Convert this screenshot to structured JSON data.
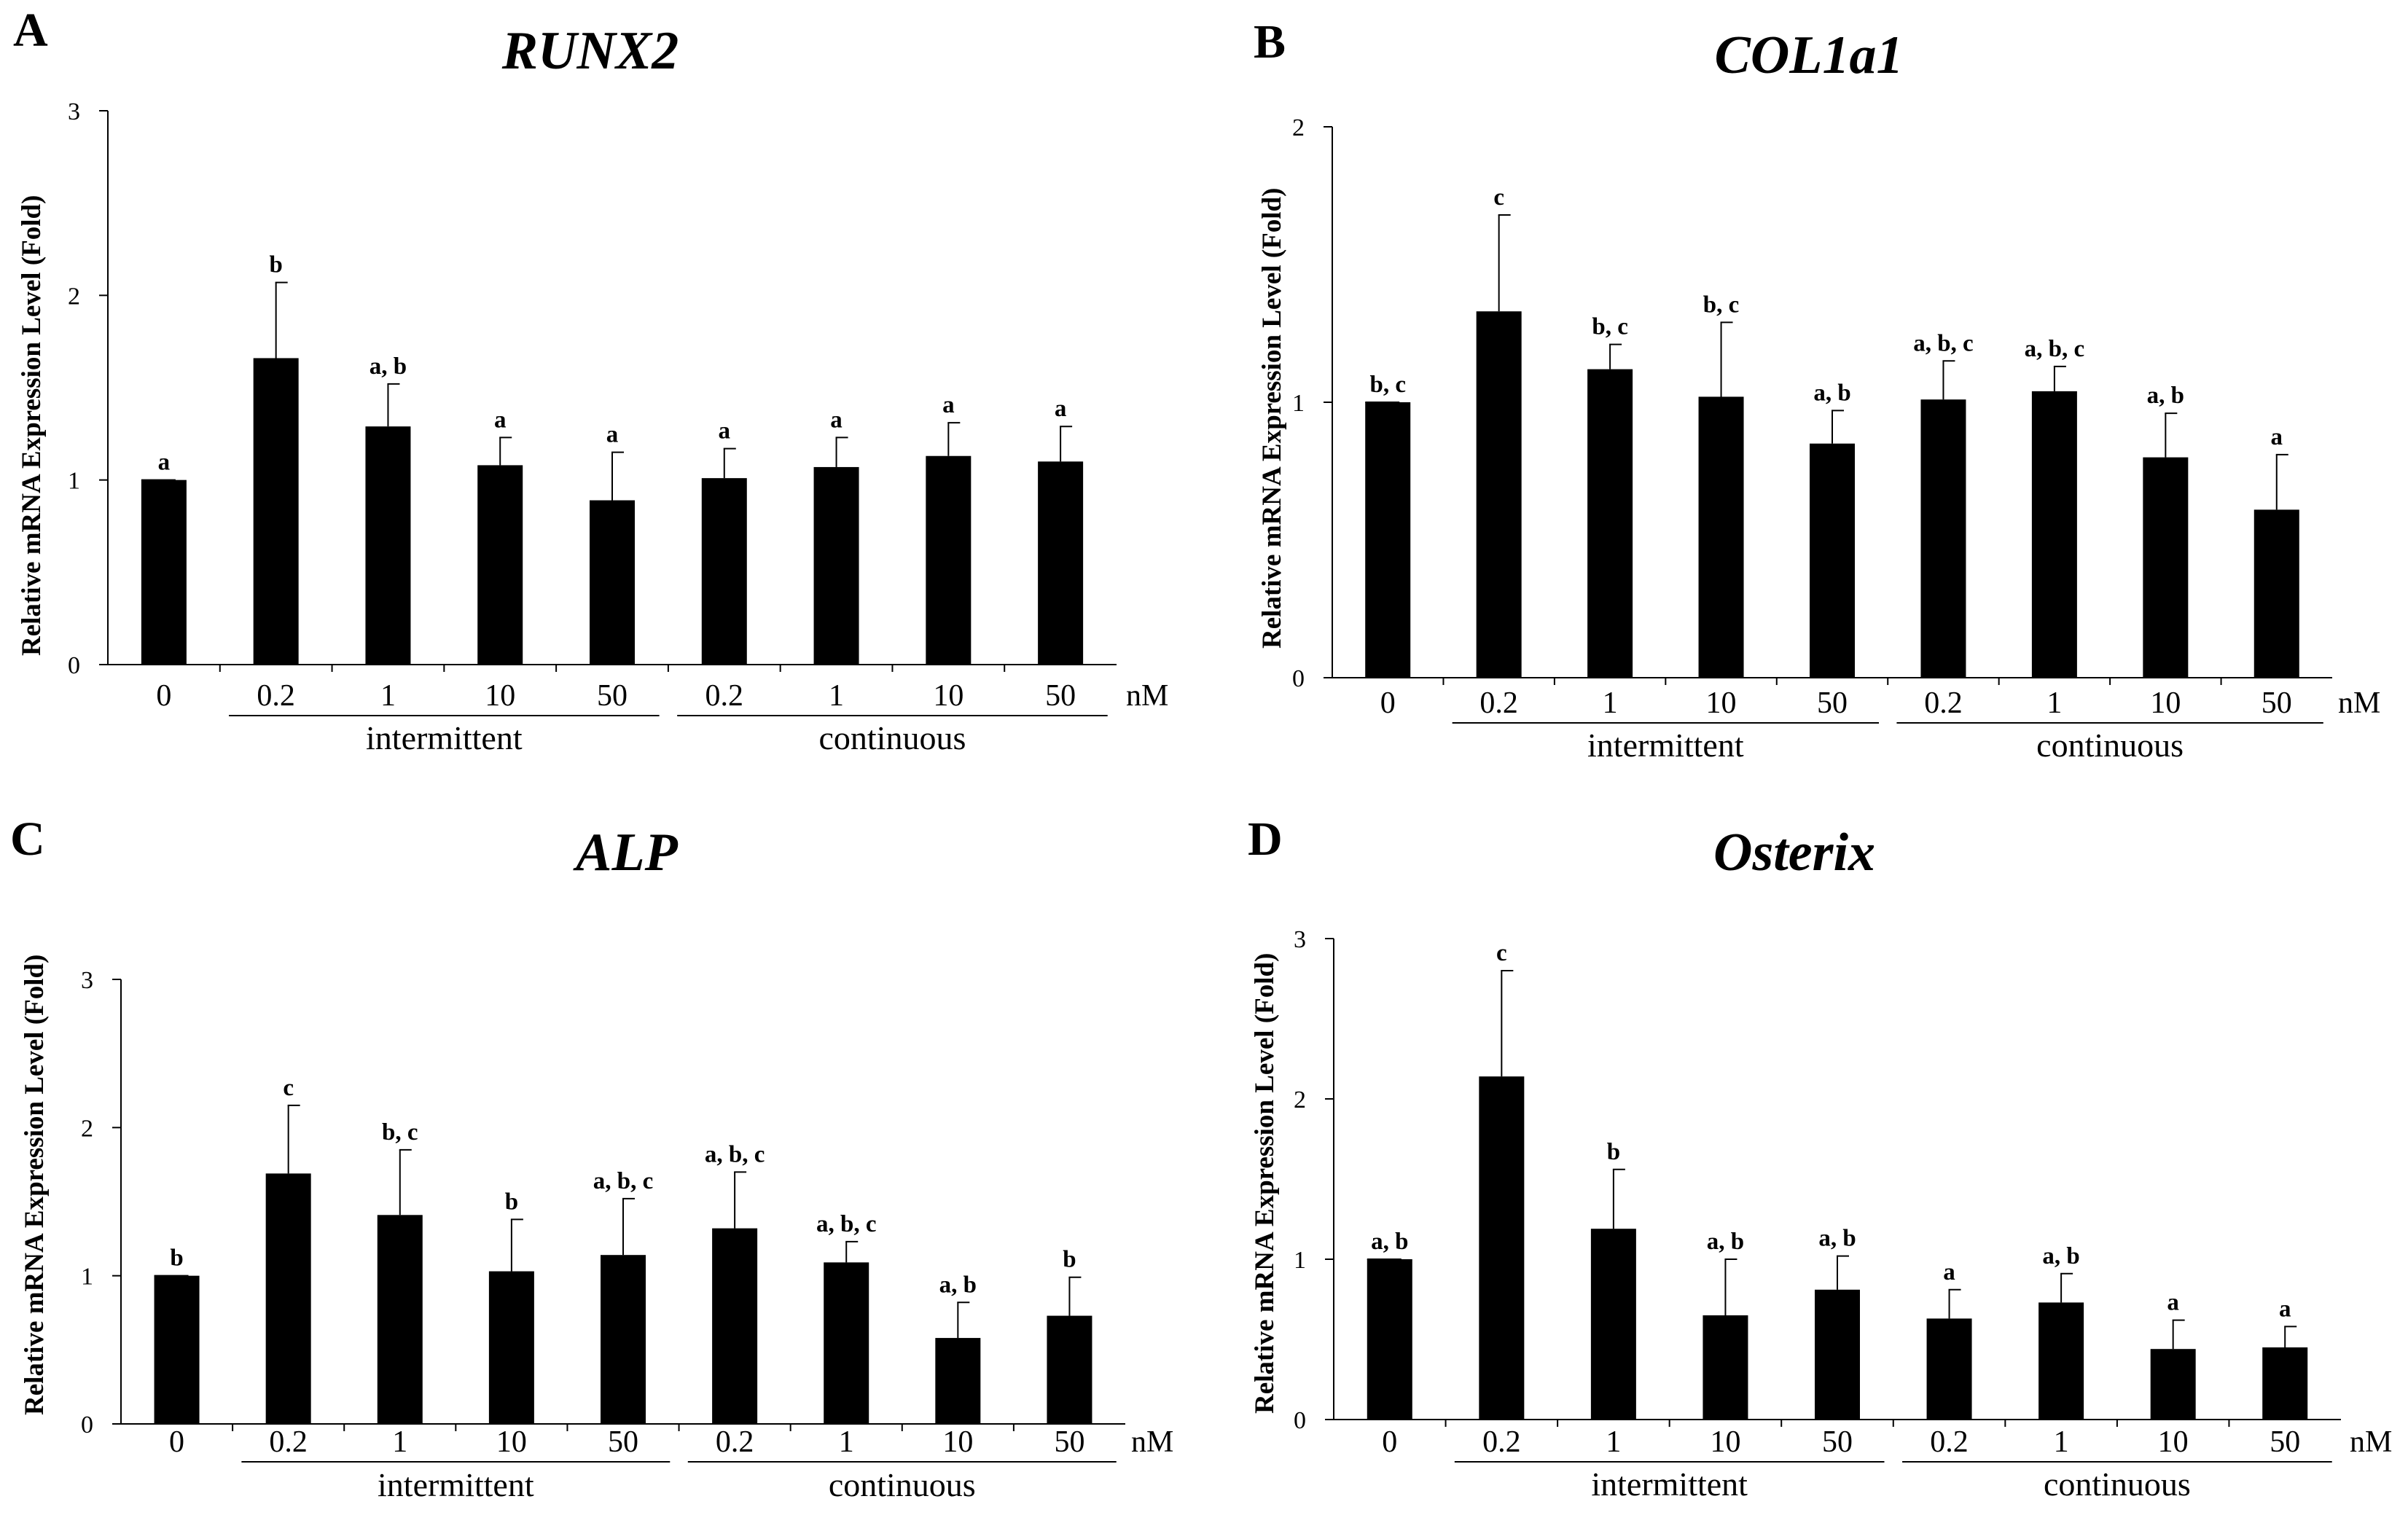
{
  "chart_data": [
    {
      "type": "bar",
      "panel_label": "A",
      "title": "RUNX2",
      "ylabel": "Relative mRNA Expression Level (Fold)",
      "xlabel": "",
      "unit": "nM",
      "ylim": [
        0,
        3
      ],
      "yticks": [
        0,
        1,
        2,
        3
      ],
      "categories": [
        "0",
        "0.2",
        "1",
        "10",
        "50",
        "0.2",
        "1",
        "10",
        "50"
      ],
      "values": [
        1.0,
        1.66,
        1.29,
        1.08,
        0.89,
        1.01,
        1.07,
        1.13,
        1.1
      ],
      "errors": [
        0.0,
        0.41,
        0.23,
        0.15,
        0.26,
        0.16,
        0.16,
        0.18,
        0.19
      ],
      "annotations": [
        "a",
        "b",
        "a, b",
        "a",
        "a",
        "a",
        "a",
        "a",
        "a"
      ],
      "groups": [
        {
          "name": "intermittent",
          "start": 1,
          "end": 4
        },
        {
          "name": "continuous",
          "start": 5,
          "end": 8
        }
      ],
      "grid": false
    },
    {
      "type": "bar",
      "panel_label": "B",
      "title": "COL1a1",
      "ylabel": "Relative mRNA Expression Level (Fold)",
      "xlabel": "",
      "unit": "nM",
      "ylim": [
        0,
        2
      ],
      "yticks": [
        0,
        1,
        2
      ],
      "categories": [
        "0",
        "0.2",
        "1",
        "10",
        "50",
        "0.2",
        "1",
        "10",
        "50"
      ],
      "values": [
        1.0,
        1.33,
        1.12,
        1.02,
        0.85,
        1.01,
        1.04,
        0.8,
        0.61
      ],
      "errors": [
        0.0,
        0.35,
        0.09,
        0.27,
        0.12,
        0.14,
        0.09,
        0.16,
        0.2
      ],
      "annotations": [
        "b, c",
        "c",
        "b, c",
        "b, c",
        "a, b",
        "a, b, c",
        "a, b, c",
        "a, b",
        "a"
      ],
      "groups": [
        {
          "name": "intermittent",
          "start": 1,
          "end": 4
        },
        {
          "name": "continuous",
          "start": 5,
          "end": 8
        }
      ],
      "grid": false
    },
    {
      "type": "bar",
      "panel_label": "C",
      "title": "ALP",
      "ylabel": "Relative mRNA Expression Level (Fold)",
      "xlabel": "",
      "unit": "nM",
      "ylim": [
        0,
        3
      ],
      "yticks": [
        0,
        1,
        2,
        3
      ],
      "categories": [
        "0",
        "0.2",
        "1",
        "10",
        "50",
        "0.2",
        "1",
        "10",
        "50"
      ],
      "values": [
        1.0,
        1.69,
        1.41,
        1.03,
        1.14,
        1.32,
        1.09,
        0.58,
        0.73
      ],
      "errors": [
        0.0,
        0.46,
        0.44,
        0.35,
        0.38,
        0.38,
        0.14,
        0.24,
        0.26
      ],
      "annotations": [
        "b",
        "c",
        "b, c",
        "b",
        "a, b, c",
        "a, b, c",
        "a, b, c",
        "a, b",
        "b"
      ],
      "groups": [
        {
          "name": "intermittent",
          "start": 1,
          "end": 4
        },
        {
          "name": "continuous",
          "start": 5,
          "end": 8
        }
      ],
      "grid": false
    },
    {
      "type": "bar",
      "panel_label": "D",
      "title": "Osterix",
      "ylabel": "Relative mRNA Expression Level (Fold)",
      "xlabel": "",
      "unit": "nM",
      "ylim": [
        0,
        3
      ],
      "yticks": [
        0,
        1,
        2,
        3
      ],
      "categories": [
        "0",
        "0.2",
        "1",
        "10",
        "50",
        "0.2",
        "1",
        "10",
        "50"
      ],
      "values": [
        1.0,
        2.14,
        1.19,
        0.65,
        0.81,
        0.63,
        0.73,
        0.44,
        0.45
      ],
      "errors": [
        0.0,
        0.66,
        0.37,
        0.35,
        0.21,
        0.18,
        0.18,
        0.18,
        0.13
      ],
      "annotations": [
        "a, b",
        "c",
        "b",
        "a, b",
        "a, b",
        "a",
        "a, b",
        "a",
        "a"
      ],
      "groups": [
        {
          "name": "intermittent",
          "start": 1,
          "end": 4
        },
        {
          "name": "continuous",
          "start": 5,
          "end": 8
        }
      ],
      "grid": false
    }
  ]
}
